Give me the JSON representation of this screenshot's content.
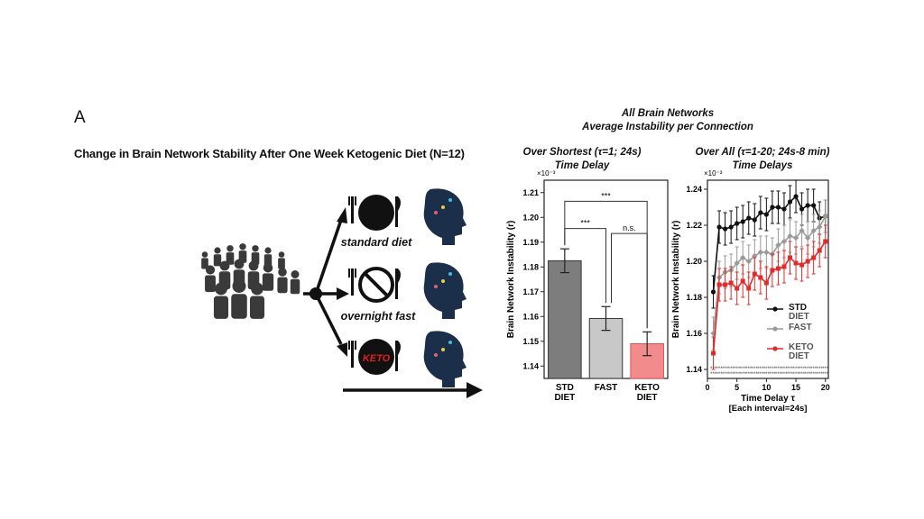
{
  "figure": {
    "panel_label": "A",
    "title": "Change in Brain Network Stability After One Week Ketogenic Diet (N=12)",
    "top_header_line1": "All Brain Networks",
    "top_header_line2": "Average Instability per Connection",
    "left_chart_header_line1": "Over Shortest (τ=1; 24s)",
    "left_chart_header_line2": "Time Delay",
    "right_chart_header_line1": "Over All (τ=1-20; 24s-8 min)",
    "right_chart_header_line2": "Time Delays"
  },
  "schematic": {
    "diets": [
      {
        "label": "standard diet",
        "plate": "plain"
      },
      {
        "label": "overnight fast",
        "plate": "no-symbol"
      },
      {
        "label": "",
        "plate": "keto"
      }
    ],
    "keto_plate_text": "KETO",
    "colors": {
      "people": "#3a3a3a",
      "head": "#1c2f4a",
      "arrow": "#111111",
      "keto_text": "#e0201c"
    }
  },
  "chart_data": [
    {
      "type": "bar",
      "title": "Over Shortest (τ=1; 24s) Time Delay",
      "ylabel": "Brain Network Instability (r)",
      "exponent_label": "×10⁻³",
      "ylim": [
        1.135,
        1.215
      ],
      "yticks": [
        1.14,
        1.15,
        1.16,
        1.17,
        1.18,
        1.19,
        1.2,
        1.21
      ],
      "ytick_labels": [
        "1.14",
        "1.15",
        "1.16",
        "1.17",
        "1.18",
        "1.19",
        "1.20",
        "1.21"
      ],
      "categories": [
        {
          "line1": "STD",
          "line2": "DIET"
        },
        {
          "line1": "FAST",
          "line2": ""
        },
        {
          "line1": "KETO",
          "line2": "DIET"
        }
      ],
      "values": [
        1.1825,
        1.1592,
        1.149
      ],
      "errors": [
        0.0048,
        0.0048,
        0.0048
      ],
      "colors": [
        "#7d7d7d",
        "#c8c8c8",
        "#f28b8b"
      ],
      "edge_colors": [
        "#333333",
        "#333333",
        "#e05050"
      ],
      "significance": [
        {
          "from": 0,
          "to": 1,
          "label": "***"
        },
        {
          "from": 1,
          "to": 2,
          "label": "n.s."
        },
        {
          "from": 0,
          "to": 2,
          "label": "***"
        }
      ]
    },
    {
      "type": "line",
      "title": "Over All (τ=1-20; 24s-8 min) Time Delays",
      "ylabel": "Brain Network Instability (r)",
      "xlabel": "Time Delay τ",
      "xlabel2": "[Each interval=24s]",
      "exponent_label": "×10⁻³",
      "xlim": [
        0,
        20.5
      ],
      "ylim": [
        1.135,
        1.245
      ],
      "xticks": [
        0,
        5,
        10,
        15,
        20
      ],
      "yticks": [
        1.14,
        1.16,
        1.18,
        1.2,
        1.22,
        1.24
      ],
      "ytick_labels": [
        "1.14",
        "1.16",
        "1.18",
        "1.20",
        "1.22",
        "1.24"
      ],
      "x": [
        1,
        2,
        3,
        4,
        5,
        6,
        7,
        8,
        9,
        10,
        11,
        12,
        13,
        14,
        15,
        16,
        17,
        18,
        19,
        20
      ],
      "error": 0.009,
      "series": [
        {
          "name": "STD DIET",
          "color": "#111111",
          "marker": "circle",
          "values": [
            1.183,
            1.219,
            1.218,
            1.219,
            1.221,
            1.222,
            1.224,
            1.223,
            1.227,
            1.226,
            1.23,
            1.23,
            1.229,
            1.233,
            1.236,
            1.229,
            1.231,
            1.231,
            1.224,
            1.225
          ]
        },
        {
          "name": "FAST",
          "color": "#9a9a9a",
          "marker": "diamond",
          "values": [
            1.16,
            1.191,
            1.194,
            1.195,
            1.199,
            1.202,
            1.2,
            1.203,
            1.205,
            1.205,
            1.204,
            1.209,
            1.211,
            1.214,
            1.213,
            1.217,
            1.213,
            1.217,
            1.219,
            1.225
          ]
        },
        {
          "name": "KETO DIET",
          "color": "#e02b2b",
          "marker": "square",
          "values": [
            1.149,
            1.187,
            1.187,
            1.188,
            1.185,
            1.189,
            1.185,
            1.193,
            1.191,
            1.188,
            1.195,
            1.196,
            1.197,
            1.202,
            1.199,
            1.198,
            1.2,
            1.202,
            1.206,
            1.211
          ]
        }
      ],
      "legend": {
        "placement": "lower-right",
        "entries": [
          {
            "line1": "STD",
            "line2": "DIET"
          },
          {
            "line1": "FAST",
            "line2": ""
          },
          {
            "line1": "KETO",
            "line2": "DIET"
          }
        ]
      },
      "significance_row": "***"
    }
  ]
}
